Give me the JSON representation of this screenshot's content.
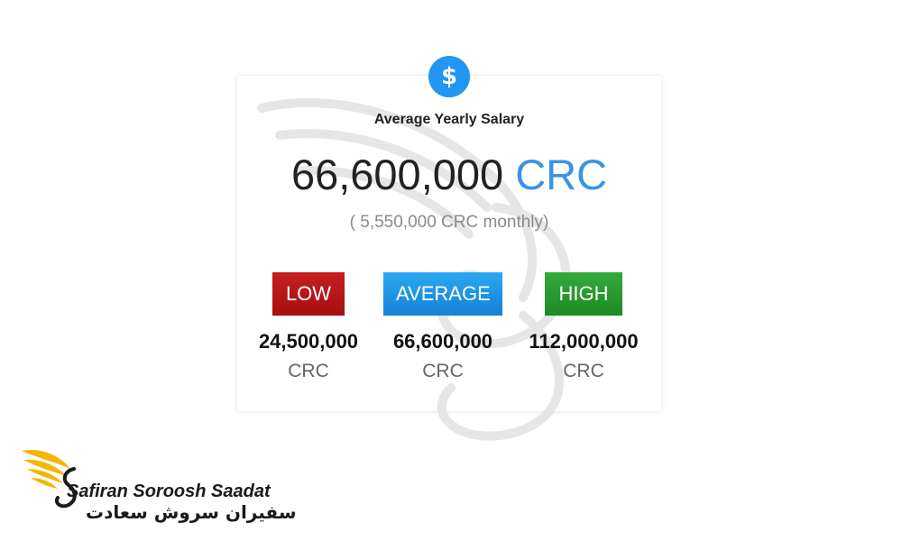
{
  "card": {
    "icon": "dollar-icon",
    "icon_glyph": "$",
    "title": "Average Yearly Salary",
    "amount": "66,600,000",
    "currency": "CRC",
    "monthly": "( 5,550,000 CRC monthly)",
    "accent_color": "#2196f3",
    "tiers": [
      {
        "label": "LOW",
        "value": "24,500,000",
        "currency": "CRC",
        "color": "#b71c1c"
      },
      {
        "label": "AVERAGE",
        "value": "66,600,000",
        "currency": "CRC",
        "color": "#1e88e5"
      },
      {
        "label": "HIGH",
        "value": "112,000,000",
        "currency": "CRC",
        "color": "#2e7d32"
      }
    ]
  },
  "brand": {
    "name_latin": "Safiran Soroosh Saadat",
    "name_farsi": "سفیران سروش سعادت",
    "logo_color": "#f2b705"
  }
}
